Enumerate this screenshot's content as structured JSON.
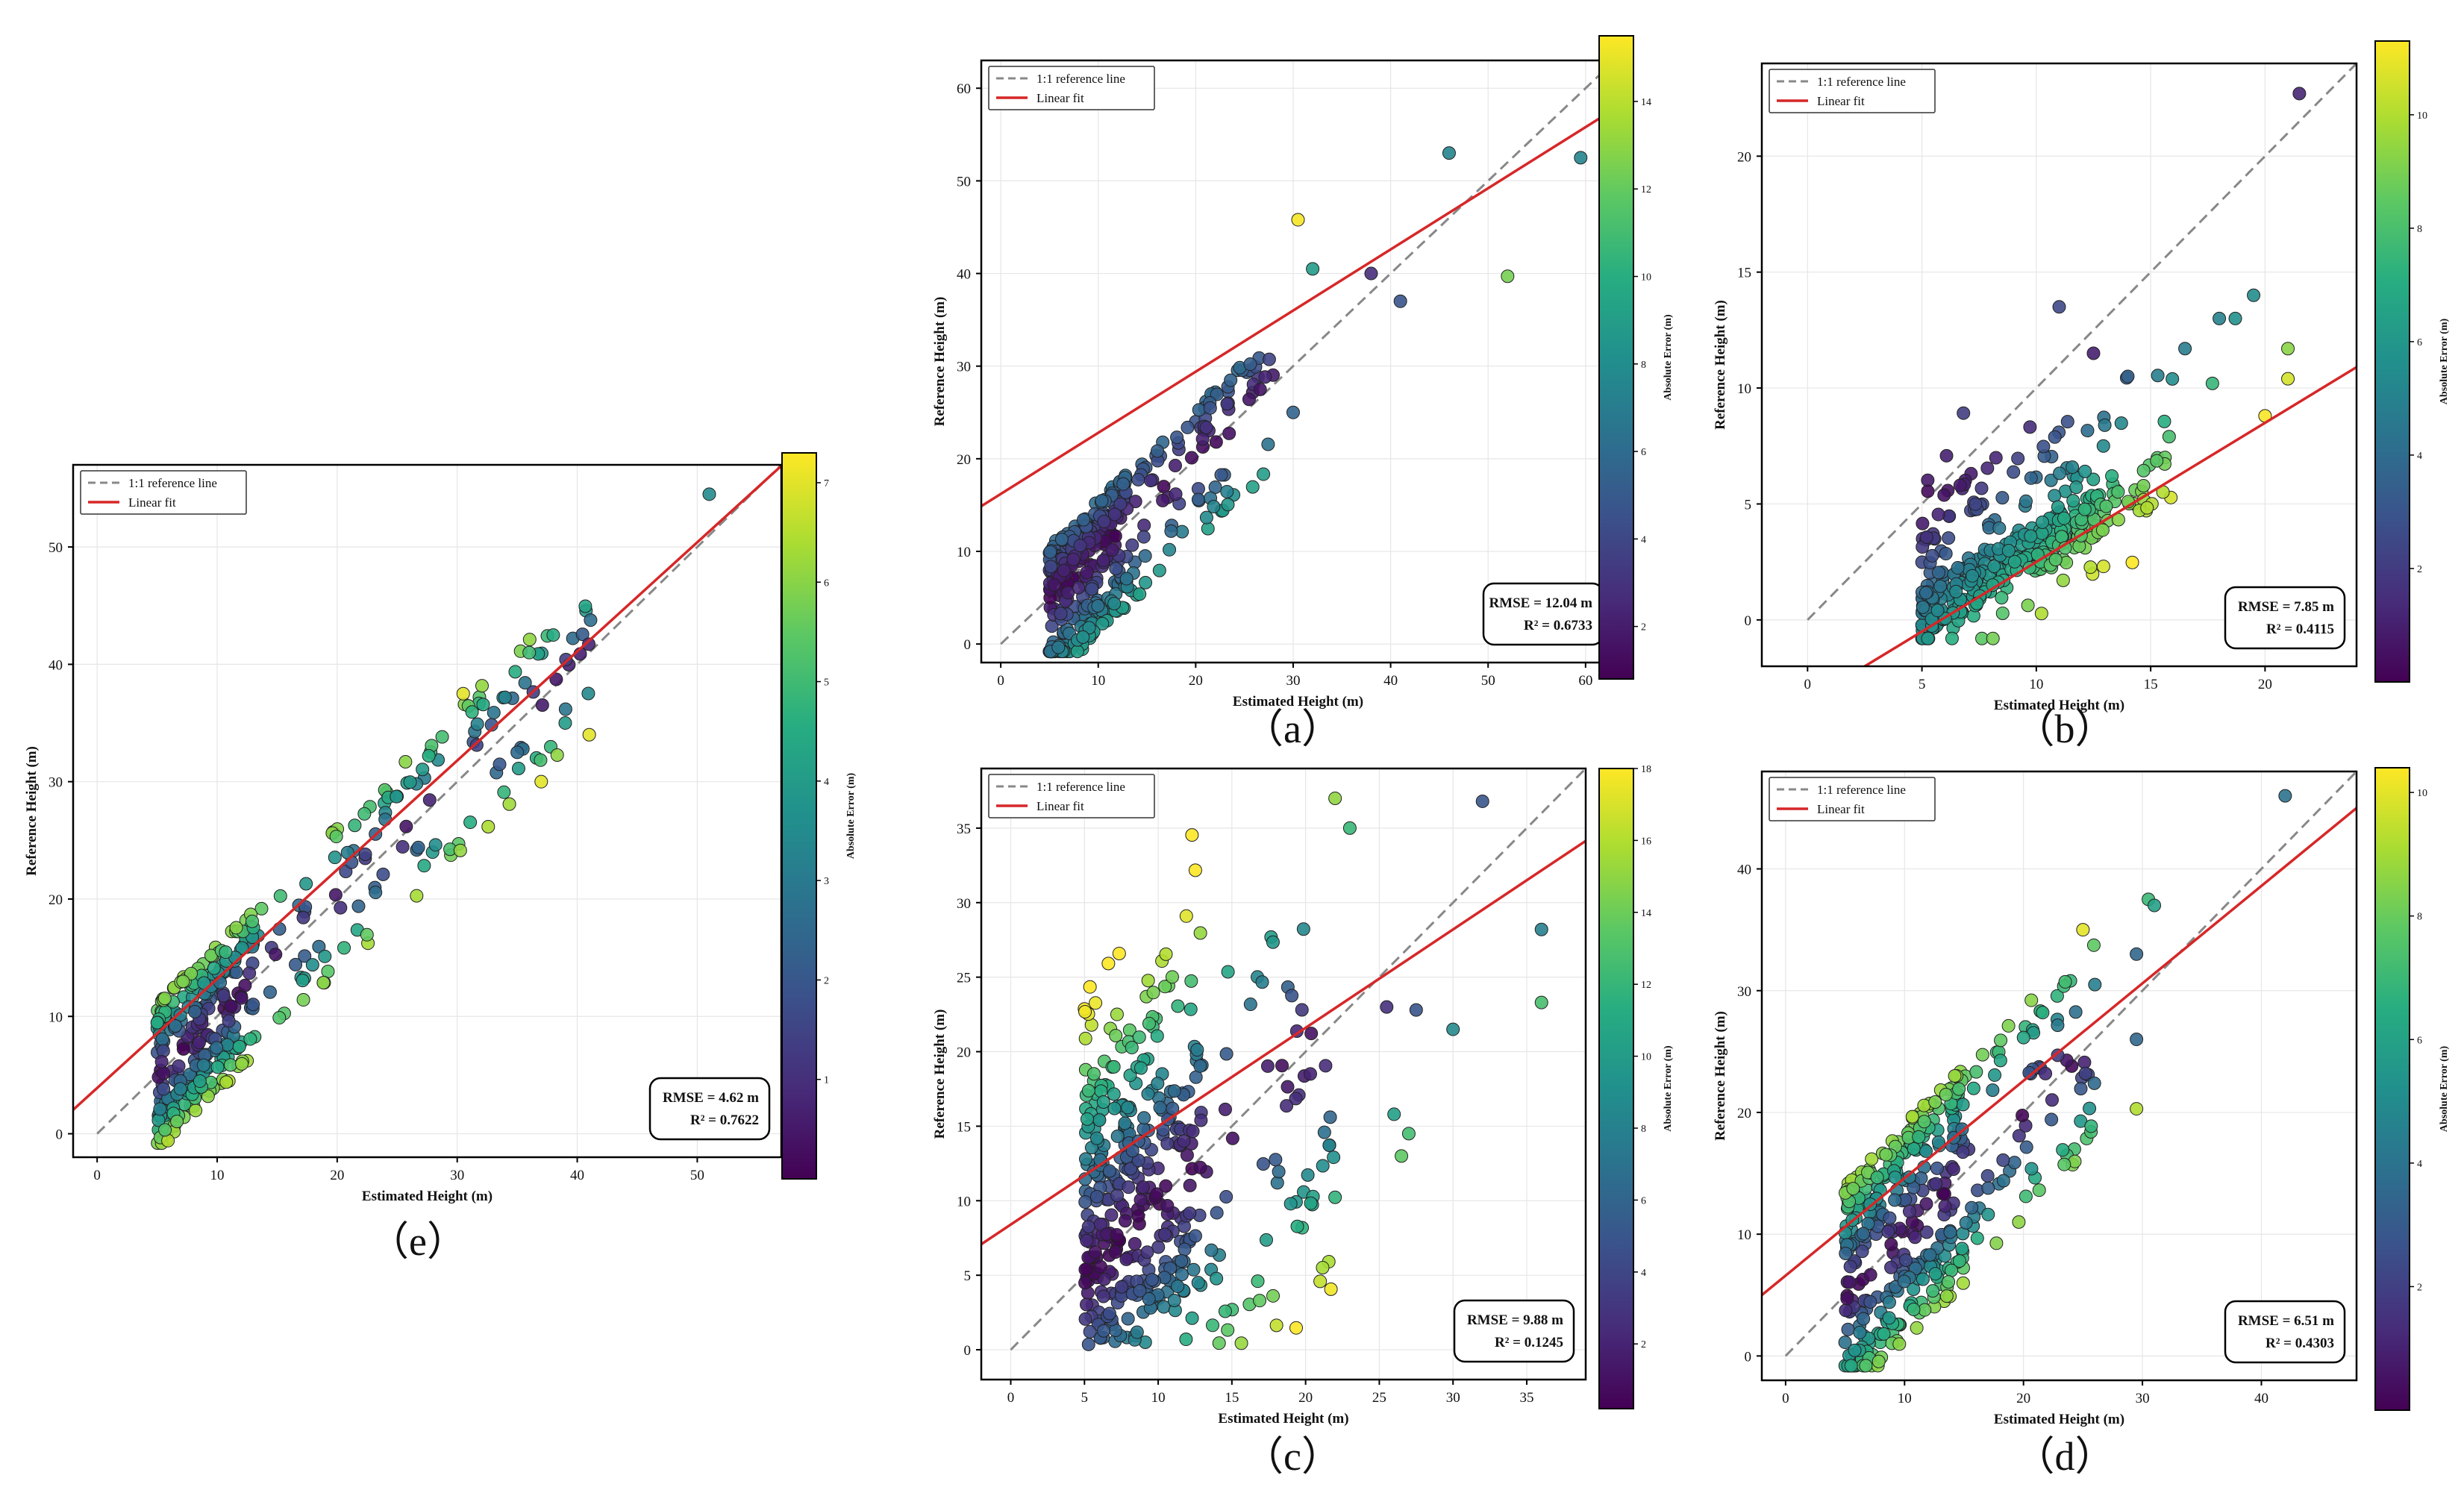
{
  "legend": {
    "ref_label": "1:1 reference line",
    "fit_label": "Linear fit"
  },
  "xlabel": "Estimated Height (m)",
  "ylabel": "Reference Height (m)",
  "colorbar_label": "Absolute Error (m)",
  "colors": {
    "ref_line": "#888888",
    "fit_line": "#d62728",
    "colormap": "viridis"
  },
  "chart_data": [
    {
      "id": "e",
      "type": "scatter",
      "caption": "（e）",
      "xlim": [
        -2,
        57
      ],
      "ylim": [
        -2,
        57
      ],
      "xticks": [
        0,
        10,
        20,
        30,
        40,
        50
      ],
      "yticks": [
        0,
        10,
        20,
        30,
        40,
        50
      ],
      "fit": {
        "slope": 0.93,
        "intercept": 3.9
      },
      "stats": {
        "rmse": "RMSE = 4.62 m",
        "r2": "R² = 0.7622"
      },
      "colorbar": {
        "min": 0,
        "max": 7.3,
        "ticks": [
          1,
          2,
          3,
          4,
          5,
          6,
          7
        ]
      },
      "sample": {
        "n": 420,
        "xmin": 5,
        "xmode": 9,
        "xmax": 42,
        "above": 6.2,
        "below": 6.5,
        "seed": 11
      },
      "extra_points": [
        [
          51,
          54.5
        ],
        [
          38,
          42.5
        ],
        [
          36,
          41
        ],
        [
          41,
          34
        ],
        [
          37,
          30
        ],
        [
          39,
          35
        ],
        [
          30.5,
          37.5
        ],
        [
          35,
          32.5
        ]
      ]
    },
    {
      "id": "a",
      "type": "scatter",
      "caption": "（a）",
      "xlim": [
        -2,
        63
      ],
      "ylim": [
        -2,
        63
      ],
      "xticks": [
        0,
        10,
        20,
        30,
        40,
        50,
        60
      ],
      "yticks": [
        0,
        10,
        20,
        30,
        40,
        50,
        60
      ],
      "fit": {
        "slope": 0.66,
        "intercept": 16.2
      },
      "stats": {
        "rmse": "RMSE = 12.04 m",
        "r2": "R² = 0.6733"
      },
      "colorbar": {
        "min": 0.8,
        "max": 15.5,
        "ticks": [
          2,
          4,
          6,
          8,
          10,
          12,
          14
        ]
      },
      "sample": {
        "n": 400,
        "xmin": 5,
        "xmode": 9,
        "xmax": 28,
        "above": 5.5,
        "below": 9,
        "seed": 23
      },
      "extra_points": [
        [
          46,
          53
        ],
        [
          59.5,
          52.5
        ],
        [
          52,
          39.7
        ],
        [
          41,
          37
        ],
        [
          38,
          40
        ],
        [
          30.5,
          45.8
        ],
        [
          32,
          40.5
        ],
        [
          30,
          25
        ]
      ]
    },
    {
      "id": "b",
      "type": "scatter",
      "caption": "（b）",
      "xlim": [
        -2,
        24
      ],
      "ylim": [
        -2,
        24
      ],
      "xticks": [
        0,
        5,
        10,
        15,
        20
      ],
      "yticks": [
        0,
        5,
        10,
        15,
        20
      ],
      "fit": {
        "slope": 0.6,
        "intercept": -3.5
      },
      "stats": {
        "rmse": "RMSE = 7.85 m",
        "r2": "R² = 0.4115"
      },
      "colorbar": {
        "min": 0,
        "max": 11.3,
        "ticks": [
          2,
          4,
          6,
          8,
          10
        ]
      },
      "sample": {
        "n": 400,
        "xmin": 5,
        "xmode": 9,
        "xmax": 16,
        "above": 6,
        "below": 1.5,
        "seed": 37
      },
      "extra_points": [
        [
          21.5,
          22.7
        ],
        [
          19.5,
          14
        ],
        [
          18.7,
          13
        ],
        [
          18,
          13
        ],
        [
          21,
          11.7
        ],
        [
          21,
          10.4
        ],
        [
          20,
          8.8
        ],
        [
          16.5,
          11.7
        ],
        [
          17.7,
          10.2
        ],
        [
          11,
          13.5
        ],
        [
          12.5,
          11.5
        ],
        [
          14,
          10.5
        ]
      ]
    },
    {
      "id": "c",
      "type": "scatter",
      "caption": "（c）",
      "xlim": [
        -2,
        39
      ],
      "ylim": [
        -2,
        39
      ],
      "xticks": [
        0,
        5,
        10,
        15,
        20,
        25,
        30,
        35
      ],
      "yticks": [
        0,
        5,
        10,
        15,
        20,
        25,
        30,
        35
      ],
      "fit": {
        "slope": 0.66,
        "intercept": 8.4
      },
      "stats": {
        "rmse": "RMSE = 9.88 m",
        "r2": "R² = 0.1245"
      },
      "colorbar": {
        "min": 0.2,
        "max": 18,
        "ticks": [
          2,
          4,
          6,
          8,
          10,
          12,
          14,
          16,
          18
        ]
      },
      "sample": {
        "n": 420,
        "xmin": 5,
        "xmode": 9,
        "xmax": 22,
        "above": 26,
        "below": 12,
        "seed": 53
      },
      "extra_points": [
        [
          32,
          36.8
        ],
        [
          36,
          28.2
        ],
        [
          36,
          23.3
        ],
        [
          30,
          21.5
        ],
        [
          26,
          15.8
        ],
        [
          26.5,
          13
        ],
        [
          27,
          14.5
        ],
        [
          25.5,
          23
        ],
        [
          27.5,
          22.8
        ],
        [
          22,
          37
        ],
        [
          23,
          35
        ]
      ]
    },
    {
      "id": "d",
      "type": "scatter",
      "caption": "（d）",
      "xlim": [
        -2,
        48
      ],
      "ylim": [
        -2,
        48
      ],
      "xticks": [
        0,
        10,
        20,
        30,
        40
      ],
      "yticks": [
        0,
        10,
        20,
        30,
        40
      ],
      "fit": {
        "slope": 0.8,
        "intercept": 6.6
      },
      "stats": {
        "rmse": "RMSE = 6.51 m",
        "r2": "R² = 0.4303"
      },
      "colorbar": {
        "min": 0,
        "max": 10.4,
        "ticks": [
          2,
          4,
          6,
          8,
          10
        ]
      },
      "sample": {
        "n": 420,
        "xmin": 5,
        "xmode": 10,
        "xmax": 26,
        "above": 9,
        "below": 9,
        "seed": 71
      },
      "extra_points": [
        [
          42,
          46
        ],
        [
          30.5,
          37.5
        ],
        [
          31,
          37
        ],
        [
          29.5,
          33
        ],
        [
          29.5,
          26
        ],
        [
          29.5,
          20.3
        ],
        [
          26,
          30.5
        ],
        [
          25,
          35
        ]
      ]
    }
  ]
}
